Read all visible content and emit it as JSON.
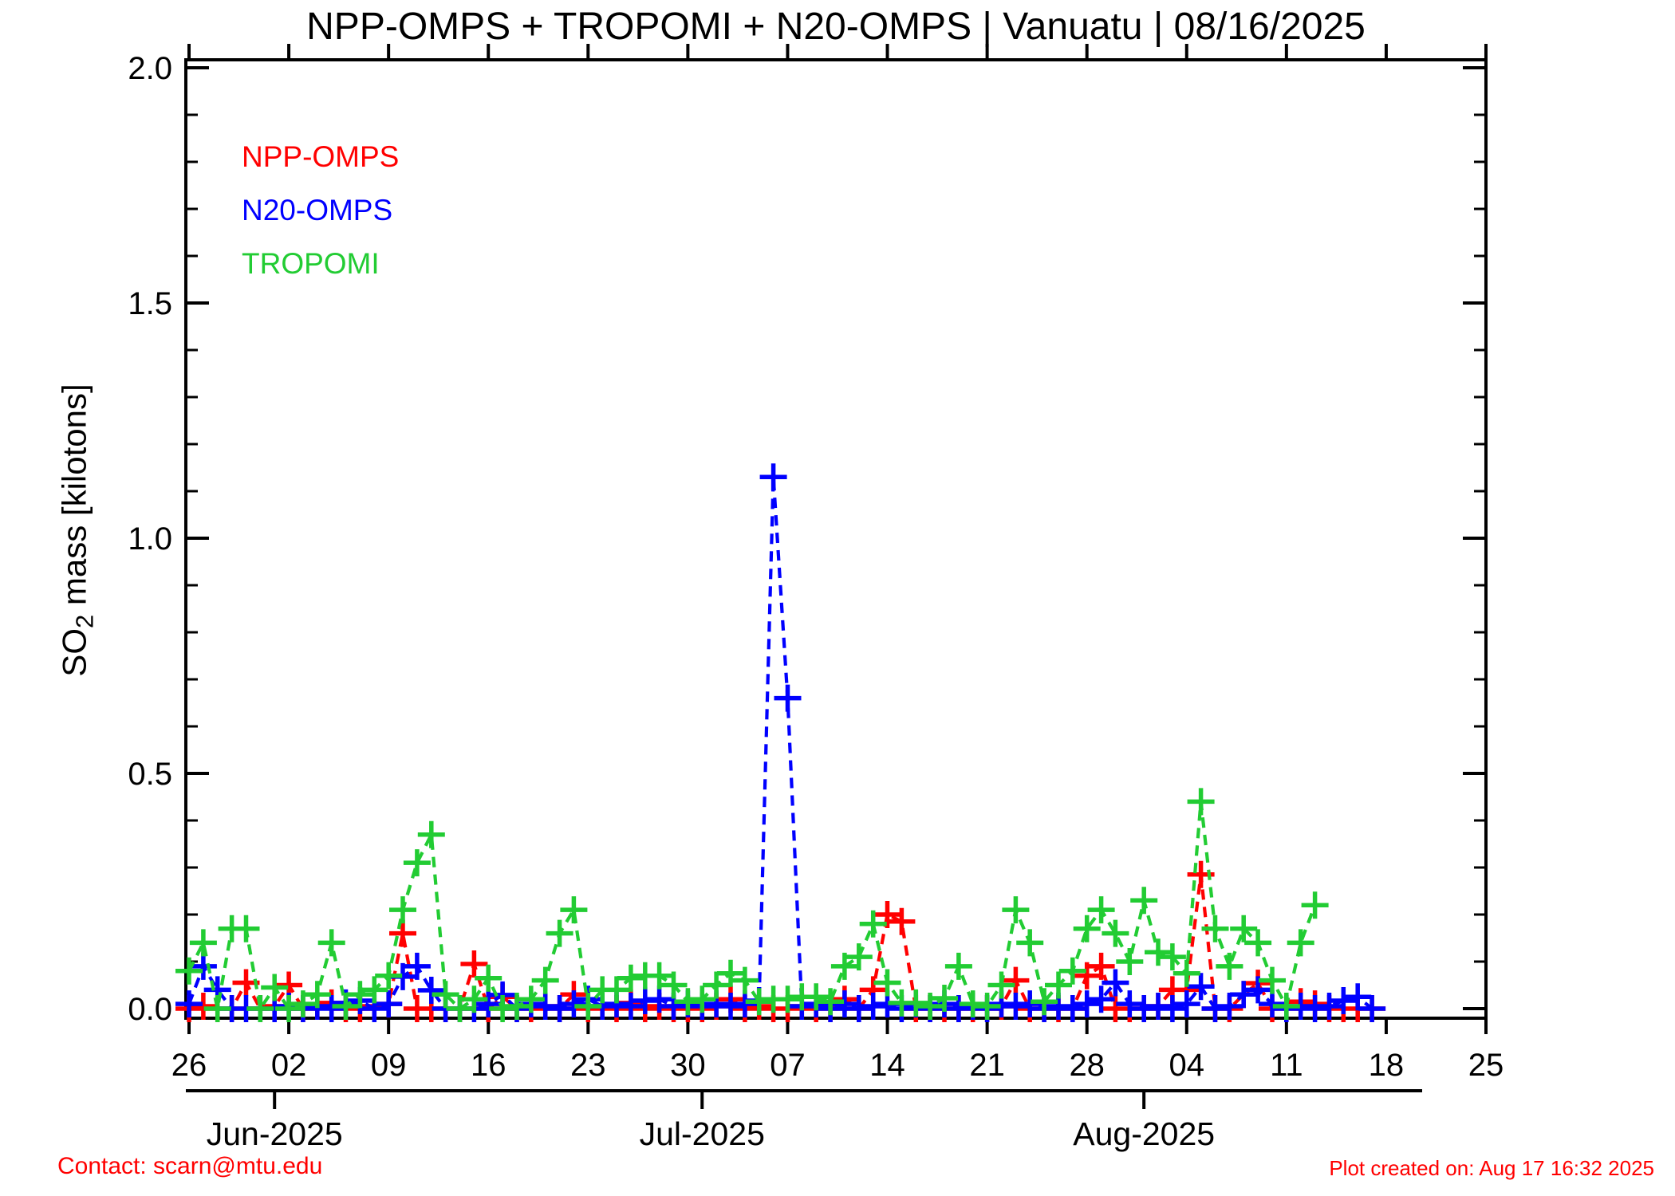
{
  "title": "NPP-OMPS + TROPOMI + N20-OMPS | Vanuatu | 08/16/2025",
  "y_axis": {
    "label_main": "SO",
    "label_sub": "2",
    "label_rest": " mass [kilotons]",
    "tick_labels": [
      "0.0",
      "0.5",
      "1.0",
      "1.5",
      "2.0"
    ]
  },
  "footer": {
    "contact": "Contact: scarn@mtu.edu",
    "created": "Plot created on: Aug 17 16:32 2025"
  },
  "chart_data": {
    "type": "line",
    "title": "NPP-OMPS + TROPOMI + N20-OMPS | Vanuatu | 08/16/2025",
    "ylabel": "SO2 mass [kilotons]",
    "ylim": [
      0,
      2
    ],
    "y_major_ticks": [
      0,
      0.5,
      1.0,
      1.5,
      2.0
    ],
    "y_minor_step": 0.1,
    "x_start_date": "2025-05-26",
    "x_end_date": "2025-08-25",
    "x_total_days": 91,
    "x_week_tick_labels": [
      "26",
      "02",
      "09",
      "16",
      "23",
      "30",
      "07",
      "14",
      "21",
      "28",
      "04",
      "11",
      "18",
      "25"
    ],
    "month_ticks": [
      {
        "day": 6,
        "label": "Jun-2025"
      },
      {
        "day": 36,
        "label": "Jul-2025"
      },
      {
        "day": 67,
        "label": "Aug-2025"
      }
    ],
    "legend_position": "top-left",
    "grid": false,
    "marker": "plus",
    "linestyle": "dashed",
    "series": [
      {
        "name": "NPP-OMPS",
        "color": "#ff0000",
        "start_day": 0,
        "values": [
          0,
          0.005,
          0,
          0,
          0.055,
          0,
          0.005,
          0.05,
          0,
          0.005,
          0.012,
          0,
          0,
          0.005,
          0.01,
          0.16,
          0,
          0,
          0,
          0,
          0.095,
          0,
          0.025,
          0,
          0,
          0.005,
          0,
          0.03,
          0,
          0.005,
          0,
          0.012,
          0,
          0.005,
          0,
          0,
          0,
          0.005,
          0.02,
          0,
          0.005,
          0,
          0,
          0.005,
          0,
          0,
          0.02,
          0,
          0.04,
          0.2,
          0.185,
          0,
          0,
          0,
          0,
          0,
          0,
          0.005,
          0.06,
          0,
          0,
          0,
          0,
          0.07,
          0.09,
          0,
          0,
          0,
          0.005,
          0.04,
          0.04,
          0.285,
          0,
          0,
          0.03,
          0.054,
          0,
          0,
          0.015,
          0.01,
          0,
          0,
          0,
          0
        ]
      },
      {
        "name": "N20-OMPS",
        "color": "#0000ff",
        "start_day": 0,
        "values": [
          0.01,
          0.09,
          0.04,
          0,
          0,
          0,
          0,
          0.005,
          0,
          0.005,
          0,
          0.012,
          0.017,
          0,
          0.01,
          0.068,
          0.09,
          0.039,
          0,
          0,
          0,
          0.01,
          0.029,
          0,
          0.01,
          0.005,
          0,
          0.01,
          0.02,
          0.005,
          0.01,
          0.005,
          0.017,
          0.02,
          0.005,
          0.01,
          0.005,
          0.01,
          0.005,
          0.01,
          0.017,
          1.13,
          0.66,
          0.005,
          0.01,
          0,
          0.01,
          0,
          0.005,
          0.01,
          0,
          0.01,
          0,
          0.01,
          0,
          0.005,
          0,
          0.01,
          0.005,
          0.01,
          0,
          0.005,
          0,
          0.01,
          0.02,
          0.055,
          0.01,
          0,
          0.005,
          0,
          0.01,
          0.047,
          0,
          0.005,
          0.03,
          0.04,
          0.01,
          0,
          0.005,
          0,
          0.005,
          0.017,
          0.025,
          0
        ]
      },
      {
        "name": "TROPOMI",
        "color": "#22cc33",
        "start_day": 0,
        "values": [
          0.08,
          0.14,
          0,
          0.17,
          0.17,
          0,
          0.045,
          0,
          0.01,
          0.03,
          0.14,
          0.005,
          0.03,
          0.04,
          0.07,
          0.21,
          0.31,
          0.37,
          0.03,
          0,
          0.02,
          0.065,
          0,
          0.005,
          0.02,
          0.06,
          0.16,
          0.21,
          0.005,
          0.04,
          0.04,
          0.065,
          0.07,
          0.07,
          0.05,
          0.015,
          0.02,
          0.05,
          0.075,
          0.06,
          0.015,
          0.02,
          0.02,
          0.025,
          0.025,
          0.015,
          0.09,
          0.11,
          0.18,
          0.055,
          0.012,
          0.012,
          0.005,
          0.022,
          0.09,
          0.01,
          0.005,
          0.05,
          0.21,
          0.14,
          0.015,
          0.05,
          0.08,
          0.17,
          0.21,
          0.16,
          0.1,
          0.23,
          0.12,
          0.11,
          0.075,
          0.44,
          0.17,
          0.09,
          0.17,
          0.14,
          0.06,
          0.005,
          0.14,
          0.22
        ]
      }
    ]
  }
}
